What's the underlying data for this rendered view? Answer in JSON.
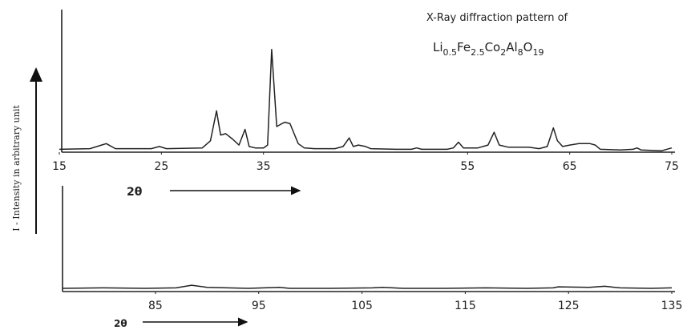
{
  "chart_data": [
    {
      "type": "line",
      "title": "X-Ray diffraction pattern of",
      "formula": [
        {
          "text": "Li",
          "sub": "0.5"
        },
        {
          "text": "Fe",
          "sub": "2.5"
        },
        {
          "text": "Co",
          "sub": "2"
        },
        {
          "text": "Al",
          "sub": "8"
        },
        {
          "text": "O",
          "sub": "19"
        }
      ],
      "y_label": "I - Intensity in arbitrary unit",
      "x_label": "2θ",
      "xlim": [
        15,
        75
      ],
      "xticks": [
        15,
        25,
        35,
        55,
        65,
        75
      ],
      "ylim": [
        0,
        100
      ],
      "series": [
        {
          "color": "#222222",
          "x": [
            15,
            18,
            19.6,
            20.5,
            24,
            24.8,
            25.5,
            29,
            29.8,
            30.4,
            30.8,
            31.3,
            32,
            32.6,
            33.2,
            33.6,
            34.2,
            35,
            35.4,
            35.8,
            36.3,
            36.8,
            37.1,
            37.6,
            38,
            38.4,
            39,
            40,
            42,
            42.8,
            43.4,
            43.8,
            44.3,
            45,
            45.5,
            48,
            49.5,
            50,
            50.5,
            53,
            53.6,
            54.1,
            54.6,
            56,
            57,
            57.6,
            58.1,
            59,
            60,
            61,
            62,
            62.8,
            63.4,
            63.8,
            64.3,
            65,
            65.9,
            67,
            67.5,
            68,
            70,
            71.2,
            71.6,
            72,
            74,
            75
          ],
          "values": [
            2,
            2.5,
            6,
            2.5,
            2.5,
            4,
            2.5,
            3,
            8,
            29,
            12,
            13,
            9,
            5,
            16,
            4,
            3,
            3,
            5,
            72,
            18,
            20,
            21,
            20,
            13,
            6,
            3,
            2.5,
            2.5,
            4,
            10,
            4,
            5,
            4,
            2.5,
            2,
            2,
            3,
            2,
            2,
            3,
            7,
            3,
            3,
            5,
            14,
            5,
            3.5,
            3.5,
            3.5,
            2.5,
            4,
            17,
            8,
            4,
            5,
            6,
            6,
            5,
            2,
            1.5,
            2,
            3,
            1.5,
            1,
            3
          ]
        }
      ]
    },
    {
      "type": "line",
      "x_label": "2θ",
      "xlim": [
        76,
        135
      ],
      "xticks": [
        85,
        95,
        105,
        115,
        125,
        135
      ],
      "ylim": [
        0,
        100
      ],
      "series": [
        {
          "color": "#222222",
          "x": [
            76,
            80,
            84,
            87,
            88.5,
            90,
            94,
            97,
            98,
            102,
            106,
            107,
            109,
            113,
            117,
            121,
            123.5,
            124,
            127,
            128.5,
            130,
            133,
            135
          ],
          "values": [
            3,
            3.5,
            3,
            3.5,
            6,
            4,
            3,
            4,
            3,
            3,
            3.5,
            4,
            3,
            3,
            3.5,
            3,
            3.5,
            4.5,
            4,
            5,
            3.5,
            3,
            3.5
          ]
        }
      ]
    }
  ]
}
